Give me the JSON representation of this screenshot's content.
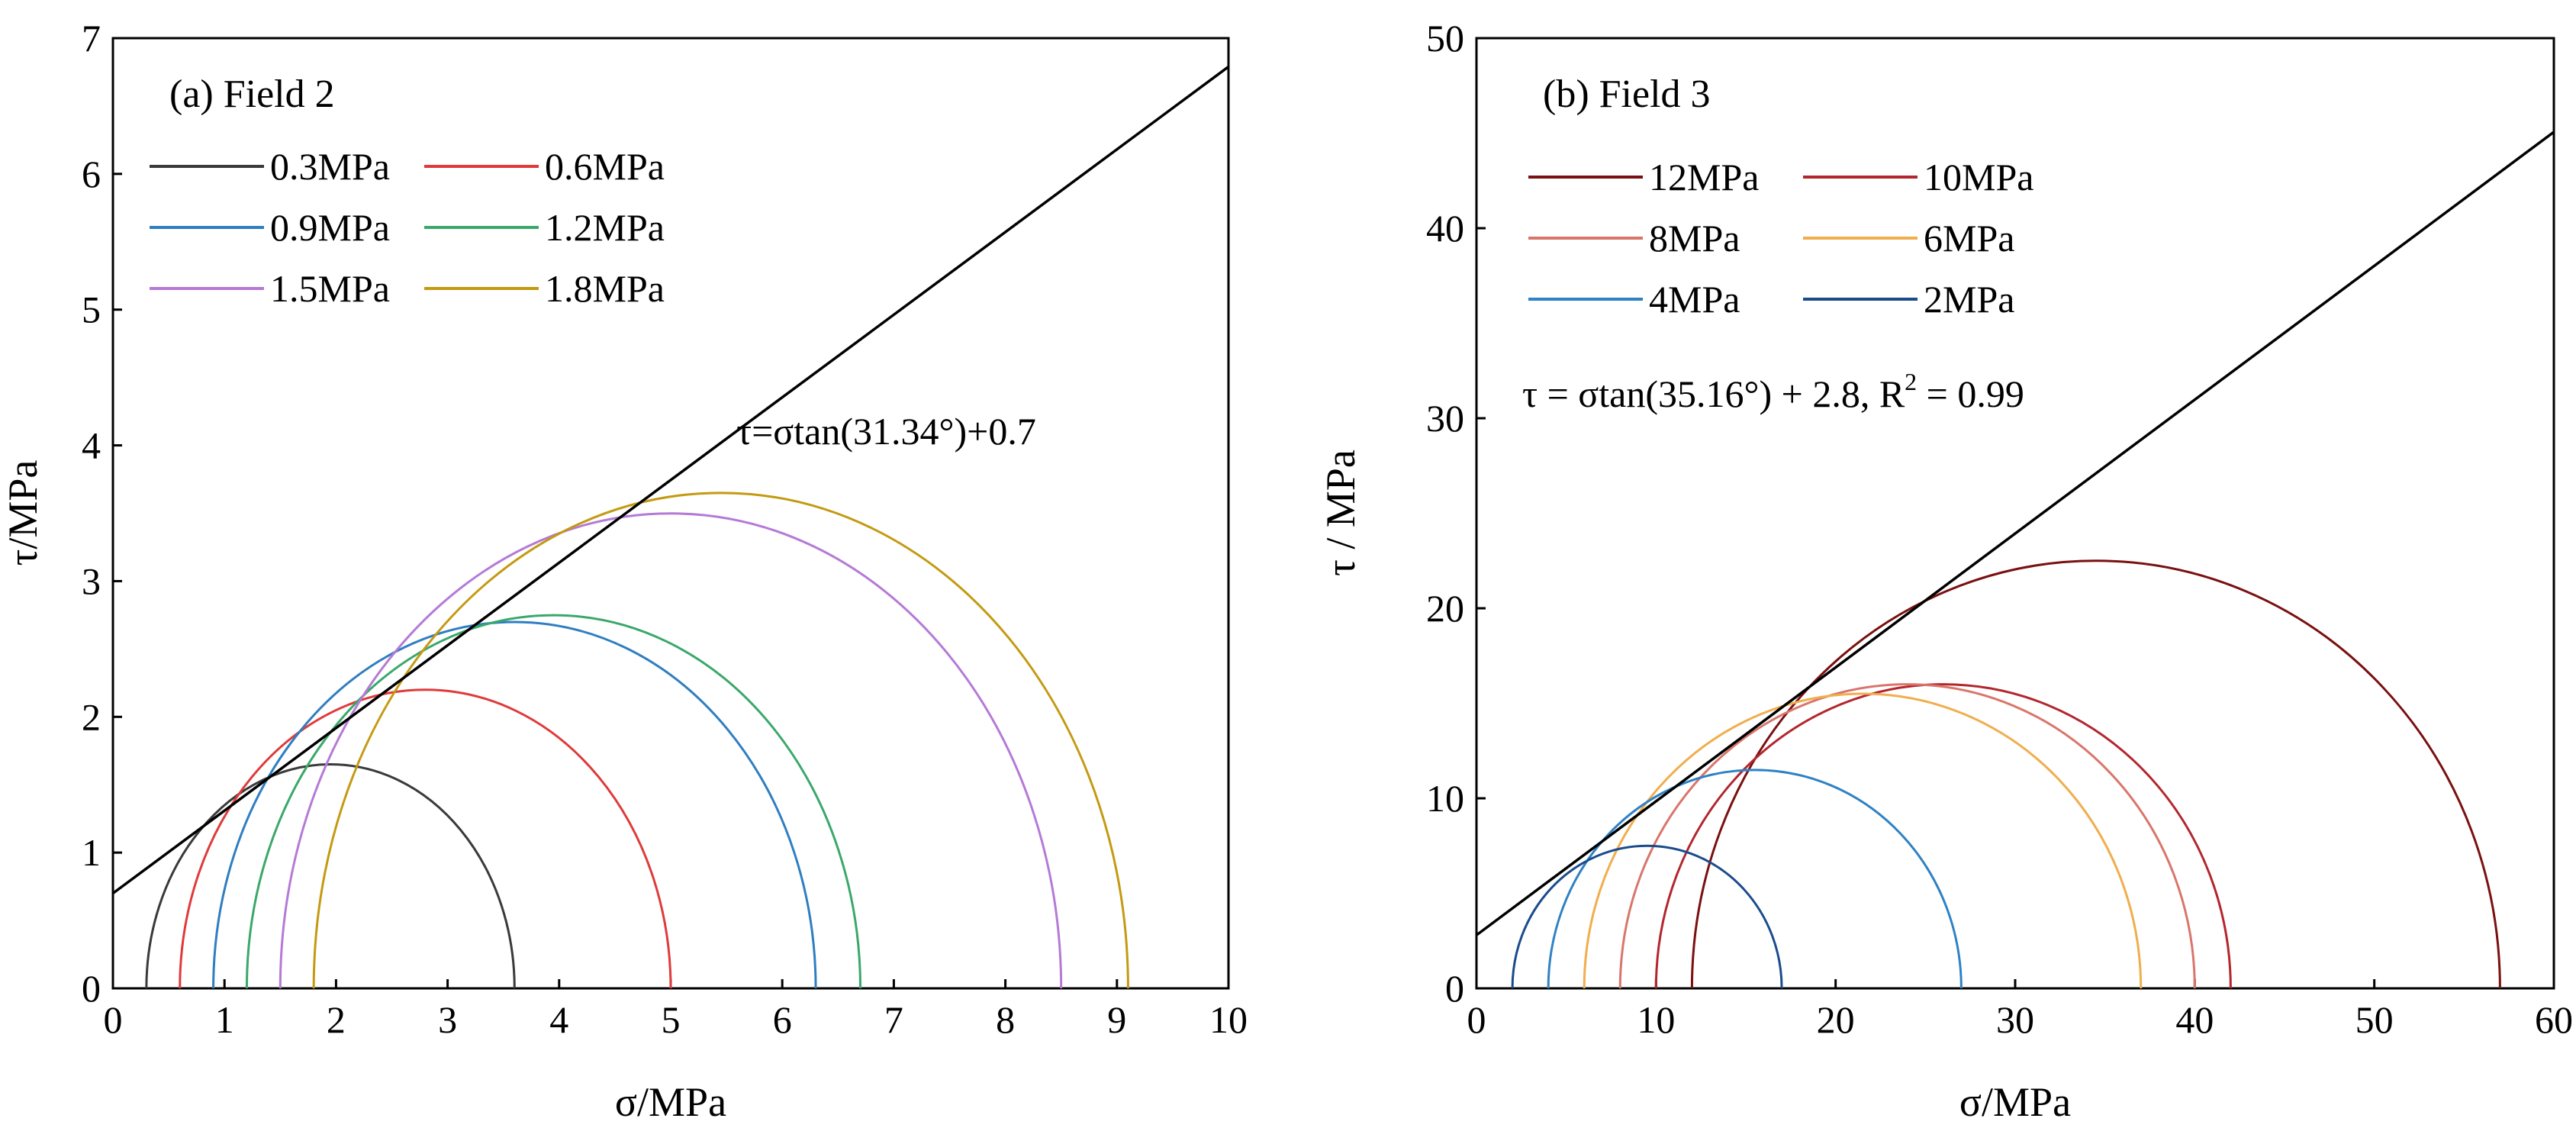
{
  "chart_data": [
    {
      "type": "line",
      "subtype": "mohr-circles",
      "title": "(a) Field 2",
      "xlabel": "σ/MPa",
      "ylabel": "τ/MPa",
      "xlim": [
        0,
        10
      ],
      "ylim": [
        0,
        7
      ],
      "xticks": [
        "0",
        "1",
        "2",
        "3",
        "4",
        "5",
        "6",
        "7",
        "8",
        "9",
        "10"
      ],
      "yticks": [
        "0",
        "1",
        "2",
        "3",
        "4",
        "5",
        "6",
        "7"
      ],
      "circles": [
        {
          "name": "0.3MPa",
          "sigma3": 0.3,
          "sigma1": 3.6,
          "color": "#3a3a3a"
        },
        {
          "name": "0.6MPa",
          "sigma3": 0.6,
          "sigma1": 5.0,
          "color": "#e03a3a"
        },
        {
          "name": "0.9MPa",
          "sigma3": 0.9,
          "sigma1": 6.3,
          "color": "#2f7ec1"
        },
        {
          "name": "1.2MPa",
          "sigma3": 1.2,
          "sigma1": 6.7,
          "color": "#3aa86a"
        },
        {
          "name": "1.5MPa",
          "sigma3": 1.5,
          "sigma1": 8.5,
          "color": "#b57ad6"
        },
        {
          "name": "1.8MPa",
          "sigma3": 1.8,
          "sigma1": 9.1,
          "color": "#c49a12"
        }
      ],
      "envelope": {
        "label": "τ=σtan(31.34°)+0.7",
        "phi_deg": 31.34,
        "c": 0.7
      },
      "legend_position": "top-left"
    },
    {
      "type": "line",
      "subtype": "mohr-circles",
      "title": "(b) Field 3",
      "xlabel": "σ/MPa",
      "ylabel": "τ / MPa",
      "xlim": [
        0,
        60
      ],
      "ylim": [
        0,
        50
      ],
      "xticks": [
        "0",
        "10",
        "20",
        "30",
        "40",
        "50",
        "60"
      ],
      "yticks": [
        "0",
        "10",
        "20",
        "30",
        "40",
        "50"
      ],
      "circles": [
        {
          "name": "12MPa",
          "sigma3": 12,
          "sigma1": 57,
          "color": "#7a1010"
        },
        {
          "name": "10MPa",
          "sigma3": 10,
          "sigma1": 42,
          "color": "#b3262e"
        },
        {
          "name": "8MPa",
          "sigma3": 8,
          "sigma1": 40,
          "color": "#d9766b"
        },
        {
          "name": "6MPa",
          "sigma3": 6,
          "sigma1": 37,
          "color": "#f0ae4e"
        },
        {
          "name": "4MPa",
          "sigma3": 4,
          "sigma1": 27,
          "color": "#2f82c4"
        },
        {
          "name": "2MPa",
          "sigma3": 2,
          "sigma1": 17,
          "color": "#1a4c8c"
        }
      ],
      "envelope": {
        "label_main": "τ = σtan(35.16°) + 2.8, R",
        "label_sup": "2",
        "label_end": " = 0.99",
        "phi_deg": 35.16,
        "c": 2.8
      },
      "legend_position": "top-left"
    }
  ]
}
